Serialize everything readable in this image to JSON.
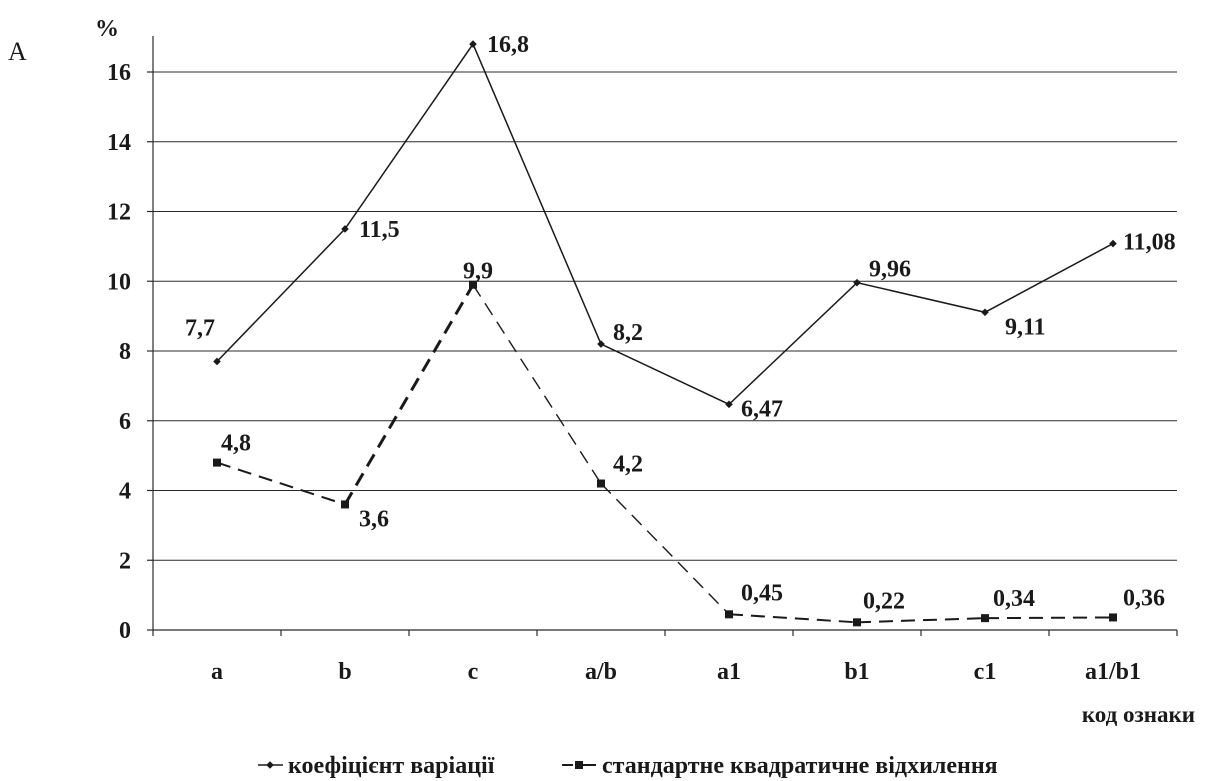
{
  "panel_label": "А",
  "chart_data": {
    "type": "line",
    "y_unit": "%",
    "xlabel": "код ознаки",
    "ylabel": "",
    "categories": [
      "a",
      "b",
      "c",
      "a/b",
      "a1",
      "b1",
      "c1",
      "a1/b1"
    ],
    "y_ticks": [
      "0",
      "2",
      "4",
      "6",
      "8",
      "10",
      "12",
      "14",
      "16"
    ],
    "ylim": [
      0,
      17
    ],
    "grid": true,
    "legend_position": "bottom",
    "series": [
      {
        "name": "коефіцієнт варіації",
        "style": "solid",
        "marker": "diamond",
        "color": "#1a1a1a",
        "values": [
          7.7,
          11.5,
          16.8,
          8.2,
          6.47,
          9.96,
          9.11,
          11.08
        ],
        "labels": [
          "7,7",
          "11,5",
          "16,8",
          "8,2",
          "6,47",
          "9,96",
          "9,11",
          "11,08"
        ]
      },
      {
        "name": "стандартне квадратичне відхилення",
        "style": "dashed",
        "marker": "square",
        "color": "#1a1a1a",
        "values": [
          4.8,
          3.6,
          9.9,
          4.2,
          0.45,
          0.22,
          0.34,
          0.36
        ],
        "labels": [
          "4,8",
          "3,6",
          "9,9",
          "4,2",
          "0,45",
          "0,22",
          "0,34",
          "0,36"
        ]
      }
    ]
  }
}
